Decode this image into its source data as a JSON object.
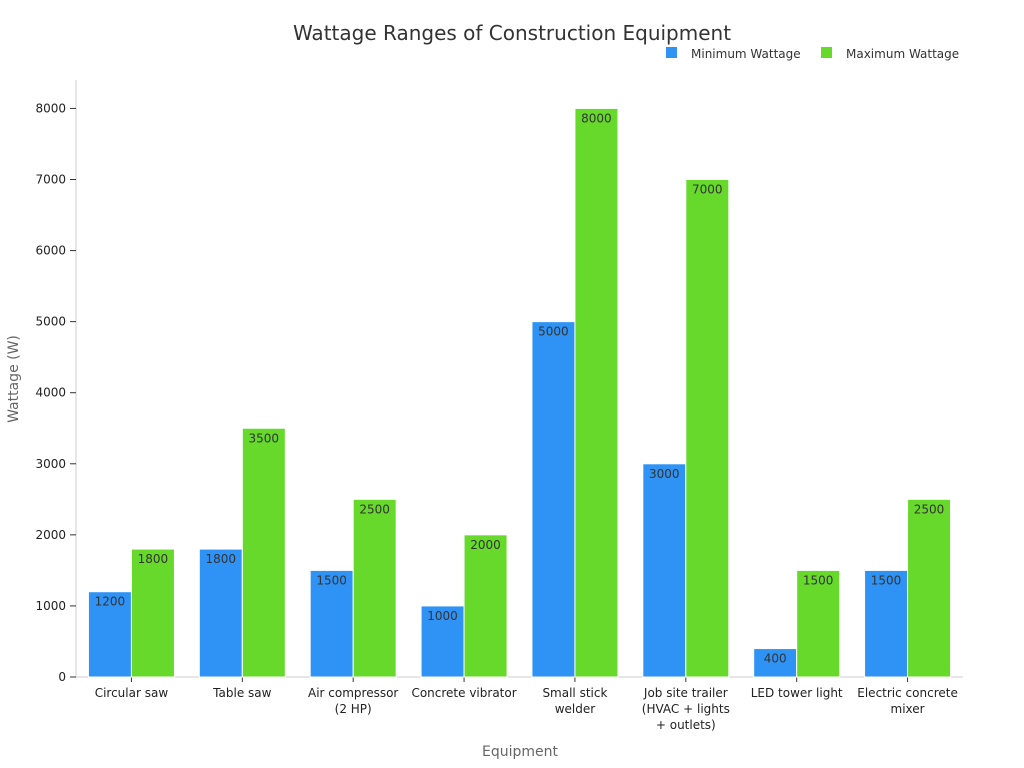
{
  "chart_data": {
    "type": "bar",
    "title": "Wattage Ranges of Construction Equipment",
    "xlabel": "Equipment",
    "ylabel": "Wattage (W)",
    "ylim": [
      0,
      8400
    ],
    "yticks": [
      0,
      1000,
      2000,
      3000,
      4000,
      5000,
      6000,
      7000,
      8000
    ],
    "categories": [
      [
        "Circular saw"
      ],
      [
        "Table saw"
      ],
      [
        "Air compressor",
        "(2 HP)"
      ],
      [
        "Concrete vibrator"
      ],
      [
        "Small stick",
        "welder"
      ],
      [
        "Job site trailer",
        "(HVAC + lights",
        "+ outlets)"
      ],
      [
        "LED tower light"
      ],
      [
        "Electric concrete",
        "mixer"
      ]
    ],
    "series": [
      {
        "name": "Minimum Wattage",
        "color": "#2e93f5",
        "values": [
          1200,
          1800,
          1500,
          1000,
          5000,
          3000,
          400,
          1500
        ]
      },
      {
        "name": "Maximum Wattage",
        "color": "#66d92a",
        "values": [
          1800,
          3500,
          2500,
          2000,
          8000,
          7000,
          1500,
          2500
        ]
      }
    ],
    "legend_position": "top-right",
    "grid": false
  }
}
